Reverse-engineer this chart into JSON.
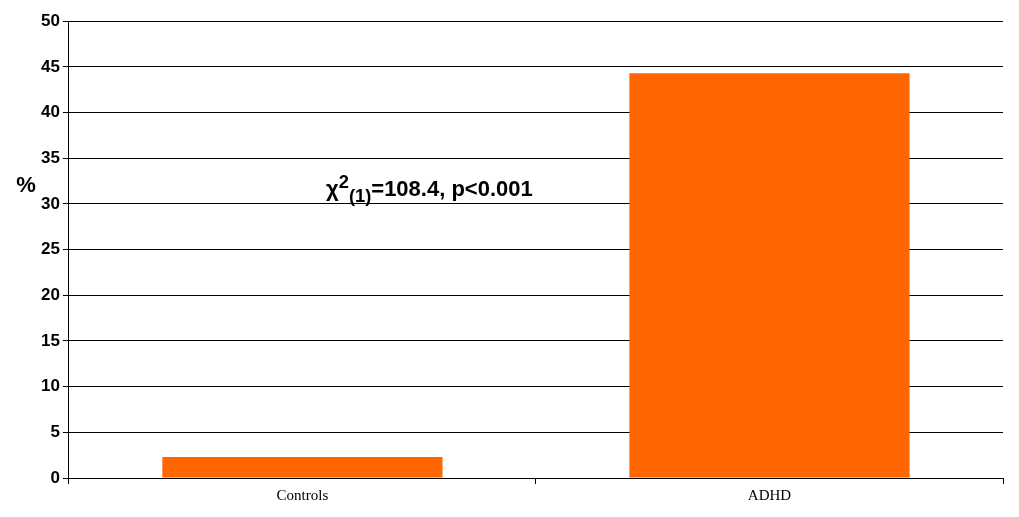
{
  "chart_data": {
    "type": "bar",
    "categories": [
      "Controls",
      "ADHD"
    ],
    "values": [
      2.3,
      44.3
    ],
    "color": "#ff6600",
    "ylabel": "%",
    "ylim": [
      0,
      50
    ],
    "yticks": [
      0,
      5,
      10,
      15,
      20,
      25,
      30,
      35,
      40,
      45,
      50
    ],
    "grid": "y",
    "legend": false,
    "annotations": [
      "χ$^{2}$$_{(1)}$=108.4, p<0.001"
    ]
  }
}
